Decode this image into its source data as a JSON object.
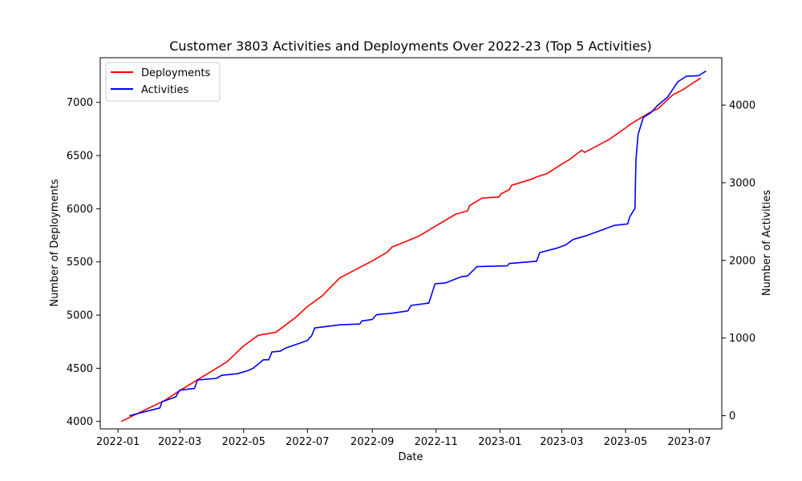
{
  "chart_data": {
    "type": "line",
    "title": "Customer 3803 Activities and Deployments Over 2022-23 (Top 5 Activities)",
    "xlabel": "Date",
    "ylabel_left": "Number of Deployments",
    "ylabel_right": "Number of Activities",
    "x_range": [
      "2021-12-15",
      "2023-08-01"
    ],
    "ylim_left": [
      3930,
      7420
    ],
    "ylim_right": [
      -170,
      4610
    ],
    "x_ticks": [
      "2022-01",
      "2022-03",
      "2022-05",
      "2022-07",
      "2022-09",
      "2022-11",
      "2023-01",
      "2023-03",
      "2023-05",
      "2023-07"
    ],
    "left_ticks": [
      4000,
      4500,
      5000,
      5500,
      6000,
      6500,
      7000
    ],
    "right_ticks": [
      0,
      1000,
      2000,
      3000,
      4000
    ],
    "legend": {
      "placement": "top-left"
    },
    "series": [
      {
        "name": "Deployments",
        "axis": "left",
        "color": "#ff0000",
        "points": [
          [
            "2022-01-04",
            4000
          ],
          [
            "2022-02-15",
            4200
          ],
          [
            "2022-03-01",
            4290
          ],
          [
            "2022-04-15",
            4560
          ],
          [
            "2022-05-01",
            4710
          ],
          [
            "2022-05-15",
            4810
          ],
          [
            "2022-06-01",
            4840
          ],
          [
            "2022-06-20",
            4980
          ],
          [
            "2022-07-01",
            5080
          ],
          [
            "2022-07-15",
            5180
          ],
          [
            "2022-08-01",
            5350
          ],
          [
            "2022-09-01",
            5510
          ],
          [
            "2022-09-15",
            5590
          ],
          [
            "2022-09-20",
            5640
          ],
          [
            "2022-10-15",
            5740
          ],
          [
            "2022-11-01",
            5840
          ],
          [
            "2022-11-20",
            5950
          ],
          [
            "2022-12-01",
            5980
          ],
          [
            "2022-12-03",
            6030
          ],
          [
            "2022-12-15",
            6100
          ],
          [
            "2022-12-31",
            6110
          ],
          [
            "2023-01-02",
            6140
          ],
          [
            "2023-01-10",
            6180
          ],
          [
            "2023-01-12",
            6220
          ],
          [
            "2023-02-01",
            6280
          ],
          [
            "2023-02-05",
            6300
          ],
          [
            "2023-02-15",
            6330
          ],
          [
            "2023-03-01",
            6420
          ],
          [
            "2023-03-08",
            6460
          ],
          [
            "2023-03-20",
            6550
          ],
          [
            "2023-03-23",
            6530
          ],
          [
            "2023-04-15",
            6650
          ],
          [
            "2023-05-01",
            6760
          ],
          [
            "2023-05-05",
            6790
          ],
          [
            "2023-05-15",
            6850
          ],
          [
            "2023-05-25",
            6910
          ],
          [
            "2023-06-01",
            6940
          ],
          [
            "2023-06-15",
            7070
          ],
          [
            "2023-06-25",
            7120
          ],
          [
            "2023-07-01",
            7160
          ],
          [
            "2023-07-12",
            7230
          ]
        ]
      },
      {
        "name": "Activities",
        "axis": "right",
        "color": "#0000ff",
        "points": [
          [
            "2022-01-12",
            0
          ],
          [
            "2022-02-10",
            100
          ],
          [
            "2022-02-12",
            180
          ],
          [
            "2022-02-25",
            240
          ],
          [
            "2022-03-01",
            330
          ],
          [
            "2022-03-15",
            350
          ],
          [
            "2022-03-18",
            460
          ],
          [
            "2022-04-05",
            480
          ],
          [
            "2022-04-10",
            520
          ],
          [
            "2022-04-25",
            540
          ],
          [
            "2022-05-05",
            580
          ],
          [
            "2022-05-10",
            610
          ],
          [
            "2022-05-20",
            720
          ],
          [
            "2022-05-25",
            720
          ],
          [
            "2022-05-28",
            820
          ],
          [
            "2022-06-05",
            830
          ],
          [
            "2022-06-10",
            870
          ],
          [
            "2022-06-25",
            940
          ],
          [
            "2022-07-01",
            970
          ],
          [
            "2022-07-05",
            1030
          ],
          [
            "2022-07-08",
            1130
          ],
          [
            "2022-08-01",
            1170
          ],
          [
            "2022-08-20",
            1180
          ],
          [
            "2022-08-22",
            1220
          ],
          [
            "2022-09-01",
            1240
          ],
          [
            "2022-09-05",
            1300
          ],
          [
            "2022-09-20",
            1320
          ],
          [
            "2022-10-05",
            1350
          ],
          [
            "2022-10-08",
            1420
          ],
          [
            "2022-10-25",
            1450
          ],
          [
            "2022-10-31",
            1700
          ],
          [
            "2022-11-10",
            1710
          ],
          [
            "2022-11-25",
            1790
          ],
          [
            "2022-12-01",
            1800
          ],
          [
            "2022-12-10",
            1920
          ],
          [
            "2023-01-08",
            1930
          ],
          [
            "2023-01-10",
            1960
          ],
          [
            "2023-02-05",
            1990
          ],
          [
            "2023-02-08",
            2100
          ],
          [
            "2023-02-25",
            2160
          ],
          [
            "2023-03-05",
            2200
          ],
          [
            "2023-03-12",
            2270
          ],
          [
            "2023-03-25",
            2320
          ],
          [
            "2023-04-10",
            2400
          ],
          [
            "2023-04-20",
            2450
          ],
          [
            "2023-05-03",
            2470
          ],
          [
            "2023-05-05",
            2560
          ],
          [
            "2023-05-10",
            2670
          ],
          [
            "2023-05-11",
            3300
          ],
          [
            "2023-05-13",
            3620
          ],
          [
            "2023-05-18",
            3840
          ],
          [
            "2023-05-25",
            3900
          ],
          [
            "2023-06-01",
            4000
          ],
          [
            "2023-06-10",
            4100
          ],
          [
            "2023-06-15",
            4200
          ],
          [
            "2023-06-20",
            4300
          ],
          [
            "2023-06-28",
            4370
          ],
          [
            "2023-07-10",
            4380
          ],
          [
            "2023-07-17",
            4440
          ]
        ]
      }
    ]
  }
}
